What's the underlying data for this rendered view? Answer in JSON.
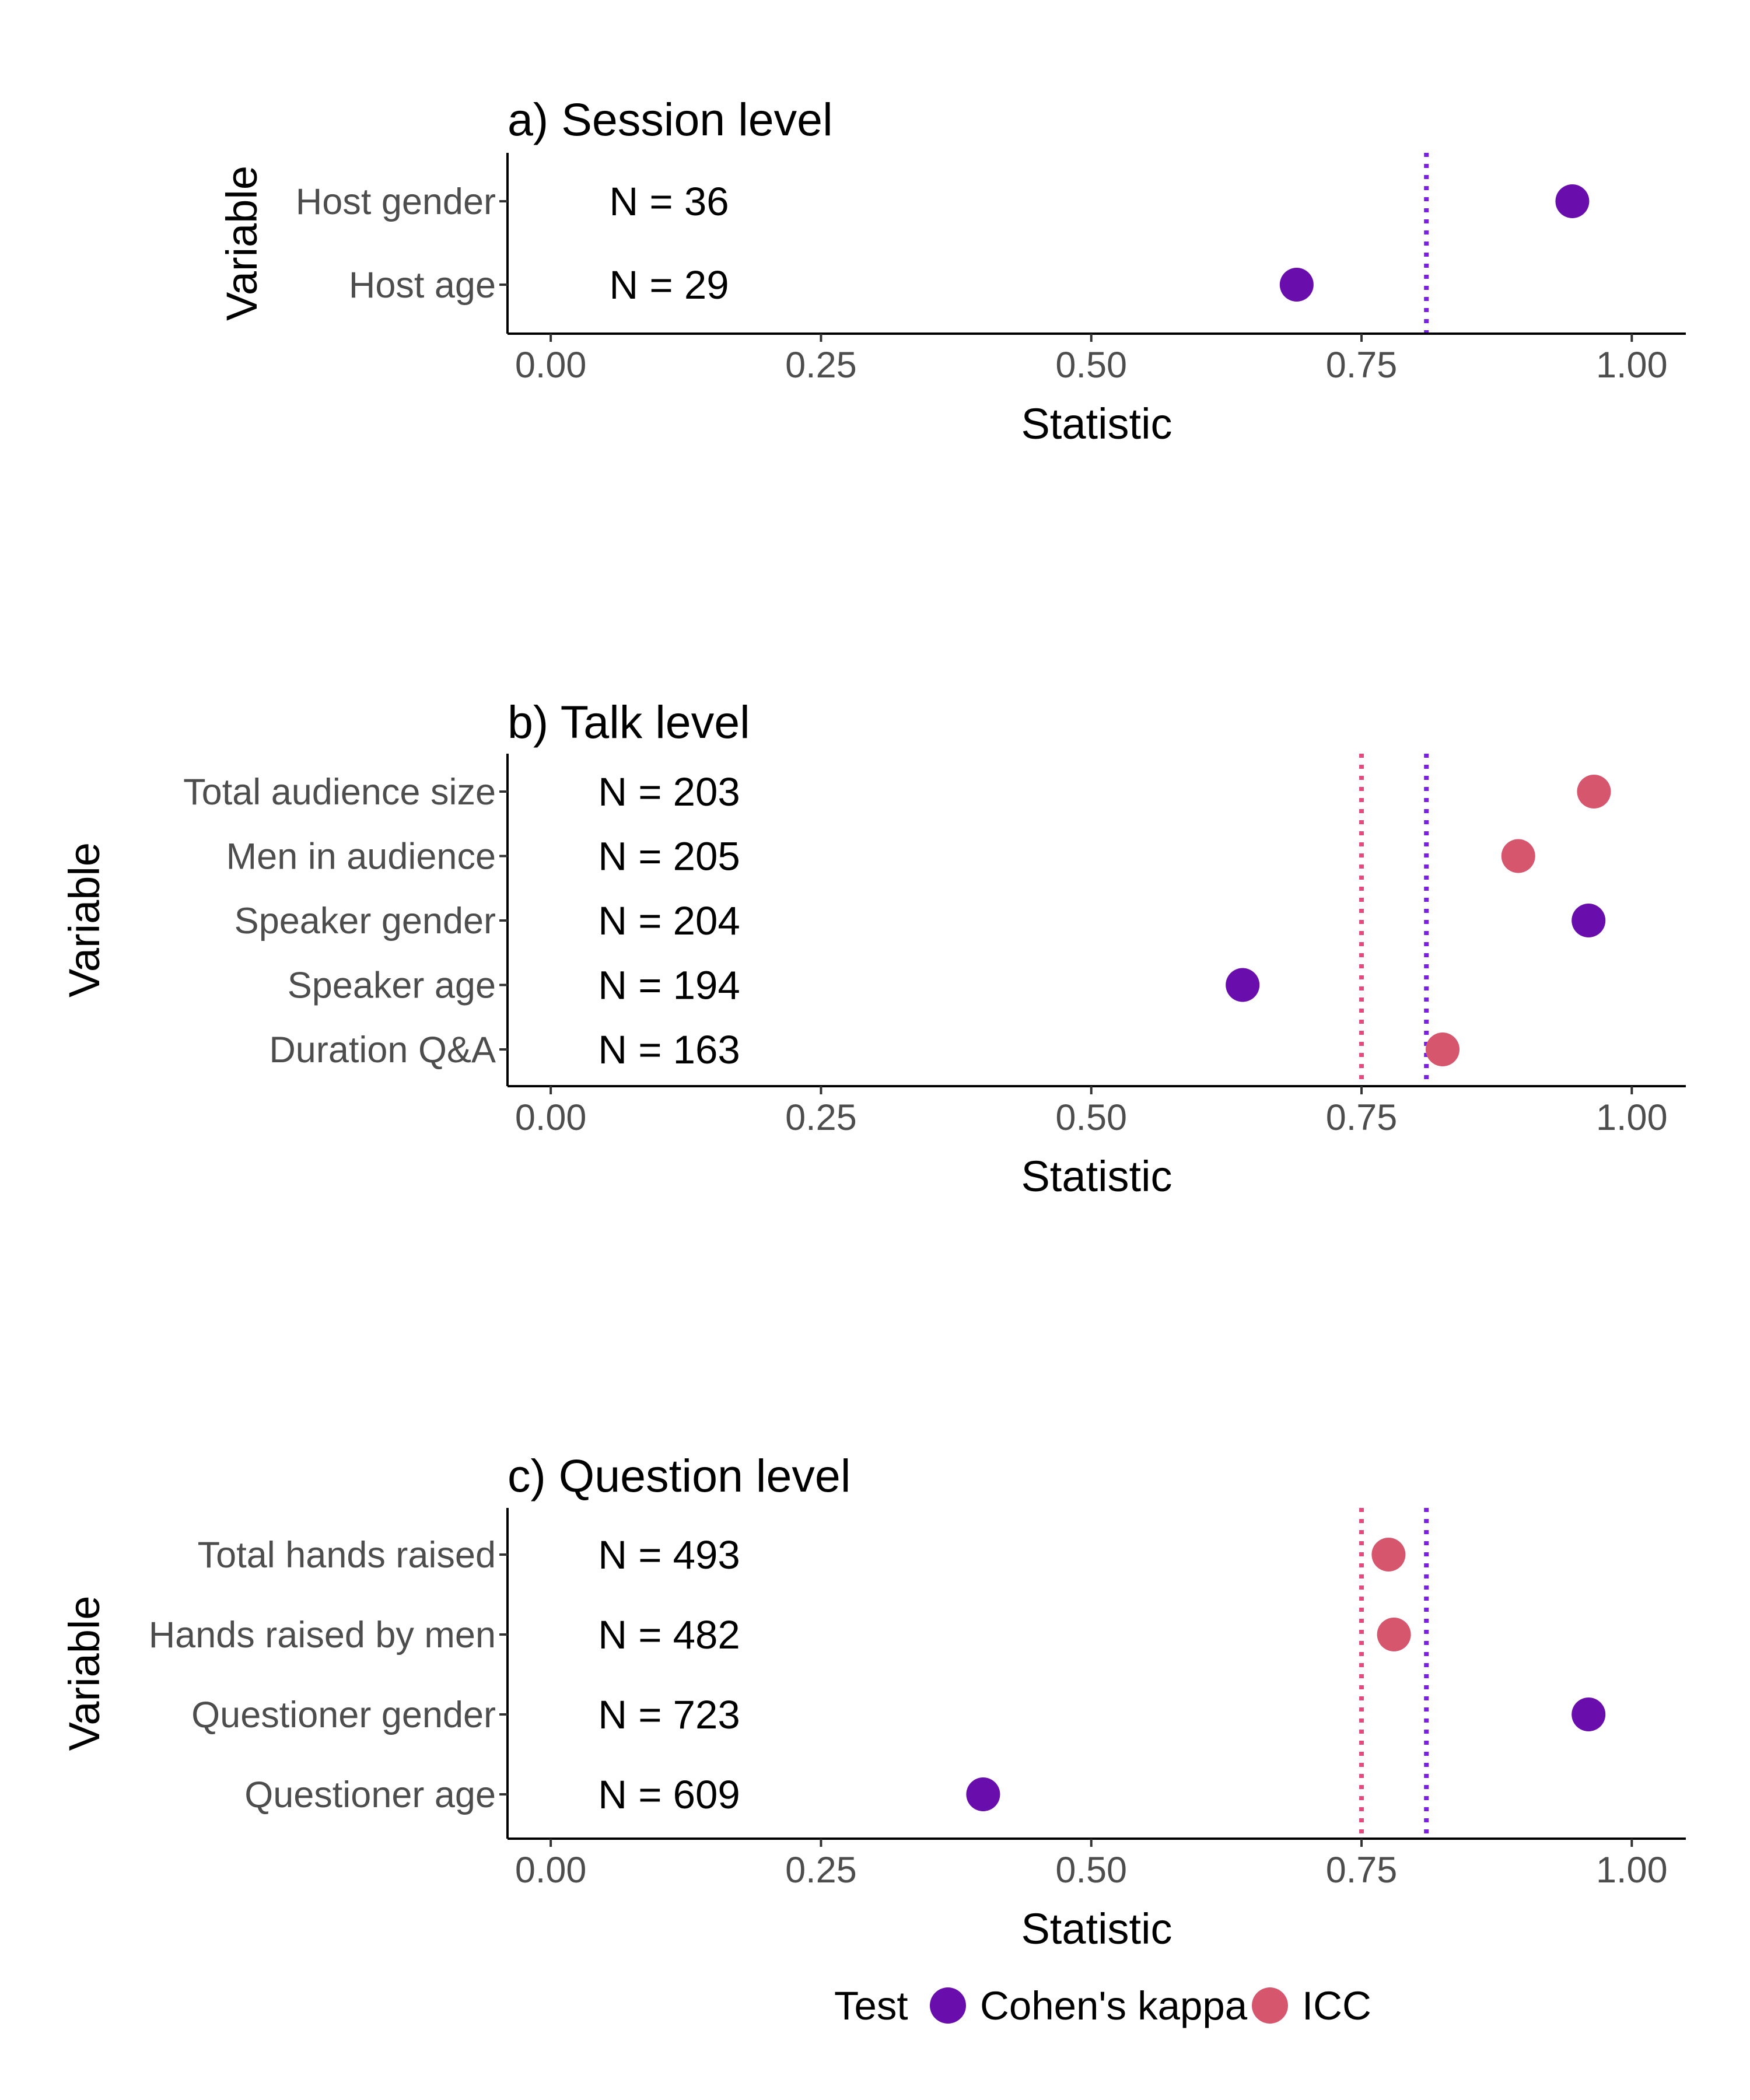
{
  "chart_data": [
    {
      "type": "scatter",
      "title": "a) Session level",
      "xlabel": "Statistic",
      "ylabel": "Variable",
      "xlim": [
        -0.04,
        1.05
      ],
      "xticks": [
        "0.00",
        "0.25",
        "0.50",
        "0.75",
        "1.00"
      ],
      "categories": [
        "Host gender",
        "Host age"
      ],
      "n_labels": [
        "N = 36",
        "N = 29"
      ],
      "values": [
        0.945,
        0.69
      ],
      "tests": [
        "Cohen's kappa",
        "Cohen's kappa"
      ],
      "reference_lines": [
        {
          "test": "Cohen's kappa",
          "x": 0.81
        }
      ]
    },
    {
      "type": "scatter",
      "title": "b) Talk level",
      "xlabel": "Statistic",
      "ylabel": "Variable",
      "xlim": [
        -0.04,
        1.05
      ],
      "xticks": [
        "0.00",
        "0.25",
        "0.50",
        "0.75",
        "1.00"
      ],
      "categories": [
        "Total audience size",
        "Men in audience",
        "Speaker gender",
        "Speaker age",
        "Duration Q&A"
      ],
      "n_labels": [
        "N = 203",
        "N = 205",
        "N = 204",
        "N = 194",
        "N = 163"
      ],
      "values": [
        0.965,
        0.895,
        0.96,
        0.64,
        0.825
      ],
      "tests": [
        "ICC",
        "ICC",
        "Cohen's kappa",
        "Cohen's kappa",
        "ICC"
      ],
      "reference_lines": [
        {
          "test": "ICC",
          "x": 0.75
        },
        {
          "test": "Cohen's kappa",
          "x": 0.81
        }
      ]
    },
    {
      "type": "scatter",
      "title": "c) Question level",
      "xlabel": "Statistic",
      "ylabel": "Variable",
      "xlim": [
        -0.04,
        1.05
      ],
      "xticks": [
        "0.00",
        "0.25",
        "0.50",
        "0.75",
        "1.00"
      ],
      "categories": [
        "Total hands raised",
        "Hands raised by men",
        "Questioner gender",
        "Questioner age"
      ],
      "n_labels": [
        "N = 493",
        "N = 482",
        "N = 723",
        "N = 609"
      ],
      "values": [
        0.775,
        0.78,
        0.96,
        0.4
      ],
      "tests": [
        "ICC",
        "ICC",
        "Cohen's kappa",
        "Cohen's kappa"
      ],
      "reference_lines": [
        {
          "test": "ICC",
          "x": 0.75
        },
        {
          "test": "Cohen's kappa",
          "x": 0.81
        }
      ]
    }
  ],
  "legend": {
    "title": "Test",
    "items": [
      "Cohen's kappa",
      "ICC"
    ],
    "placement": "bottom"
  },
  "colors": {
    "Cohen's kappa": "#6a0dad",
    "ICC": "#d6566e",
    "kappa_line": "#7b1fe0",
    "icc_line": "#e24a80"
  }
}
